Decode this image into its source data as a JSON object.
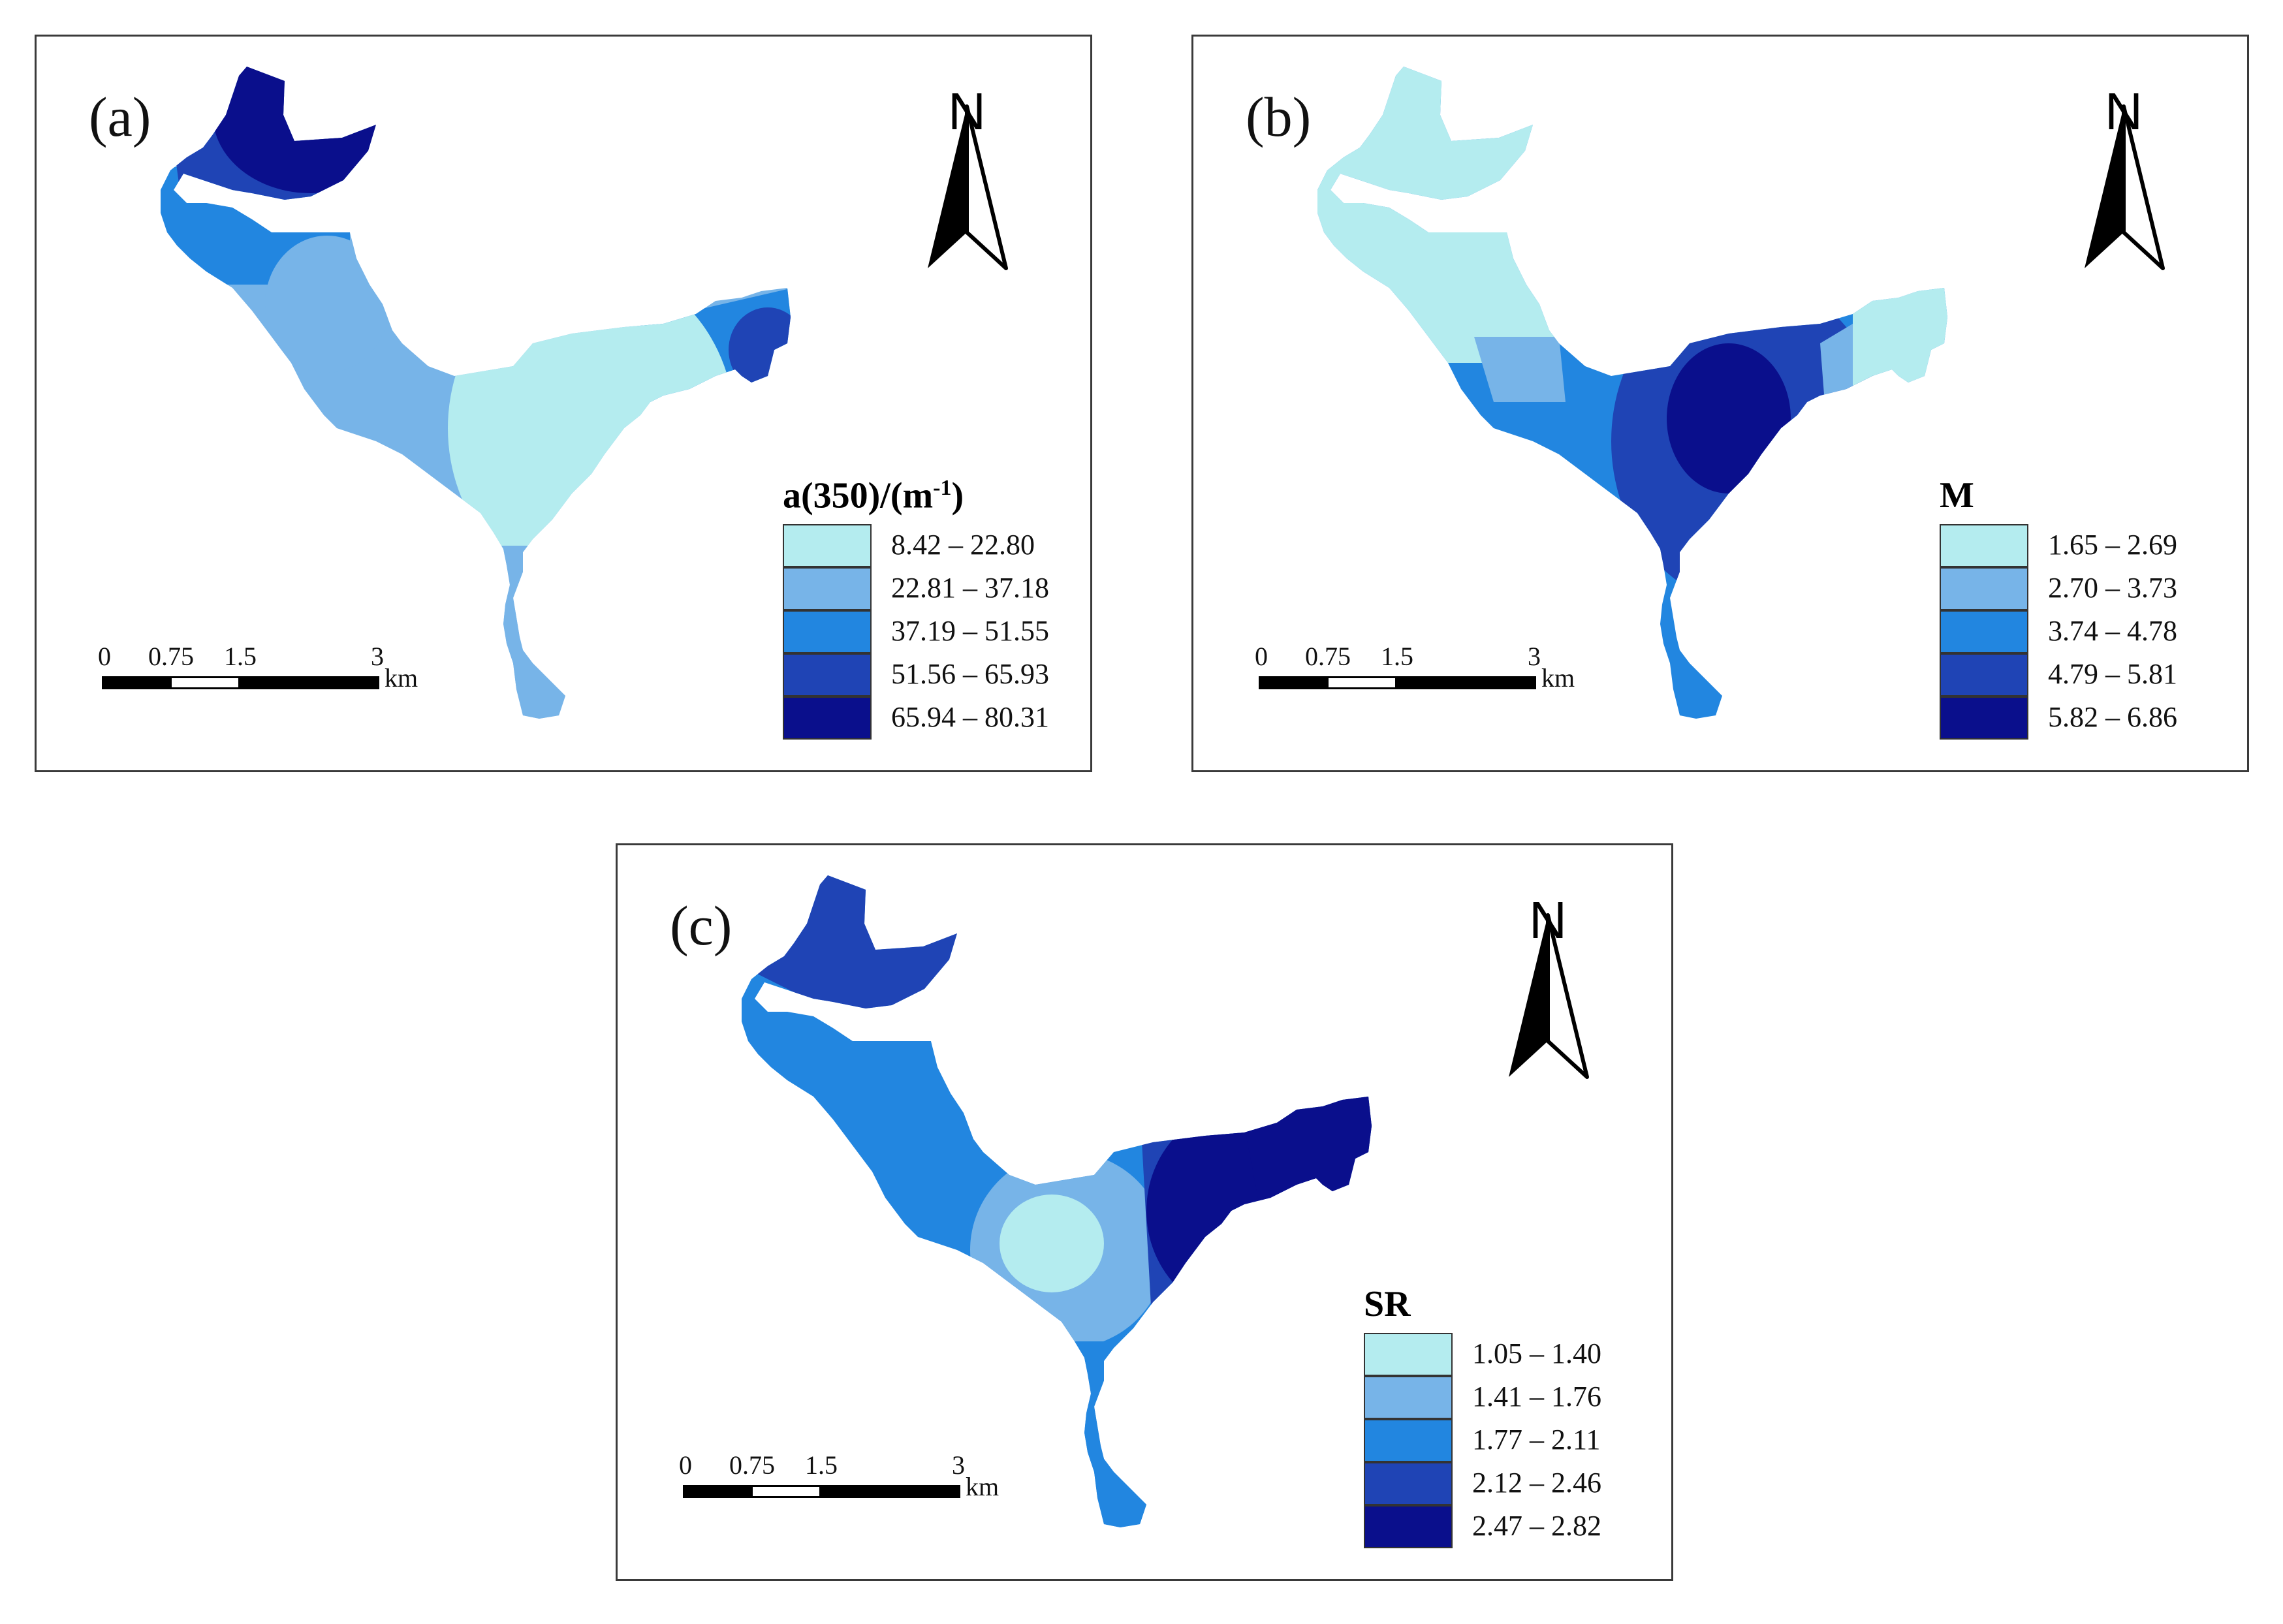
{
  "figure": "Three-panel thematic map of a Y-shaped water body",
  "palette": {
    "class1": "#b4ecef",
    "class2": "#77b4e8",
    "class3": "#2286e0",
    "class4": "#1f44b5",
    "class5": "#0a0f8c"
  },
  "north_arrow": {
    "letter": "N"
  },
  "scale_bar": {
    "ticks": [
      "0",
      "0.75",
      "1.5",
      "3"
    ],
    "unit": "km"
  },
  "panels": [
    {
      "label": "(a)",
      "legend": {
        "title": "a(350)/(m",
        "title_sup": "-1",
        "title_suffix": ")",
        "classes": [
          "8.42 – 22.80",
          "22.81 – 37.18",
          "37.19 – 51.55",
          "51.56 – 65.93",
          "65.94 – 80.31"
        ]
      }
    },
    {
      "label": "(b)",
      "legend": {
        "title": "M",
        "classes": [
          "1.65 – 2.69",
          "2.70 – 3.73",
          "3.74 – 4.78",
          "4.79 – 5.81",
          "5.82 – 6.86"
        ]
      }
    },
    {
      "label": "(c)",
      "legend": {
        "title": "SR",
        "classes": [
          "1.05 – 1.40",
          "1.41 – 1.76",
          "1.77 – 2.11",
          "2.12 – 2.46",
          "2.47 – 2.82"
        ]
      }
    }
  ]
}
